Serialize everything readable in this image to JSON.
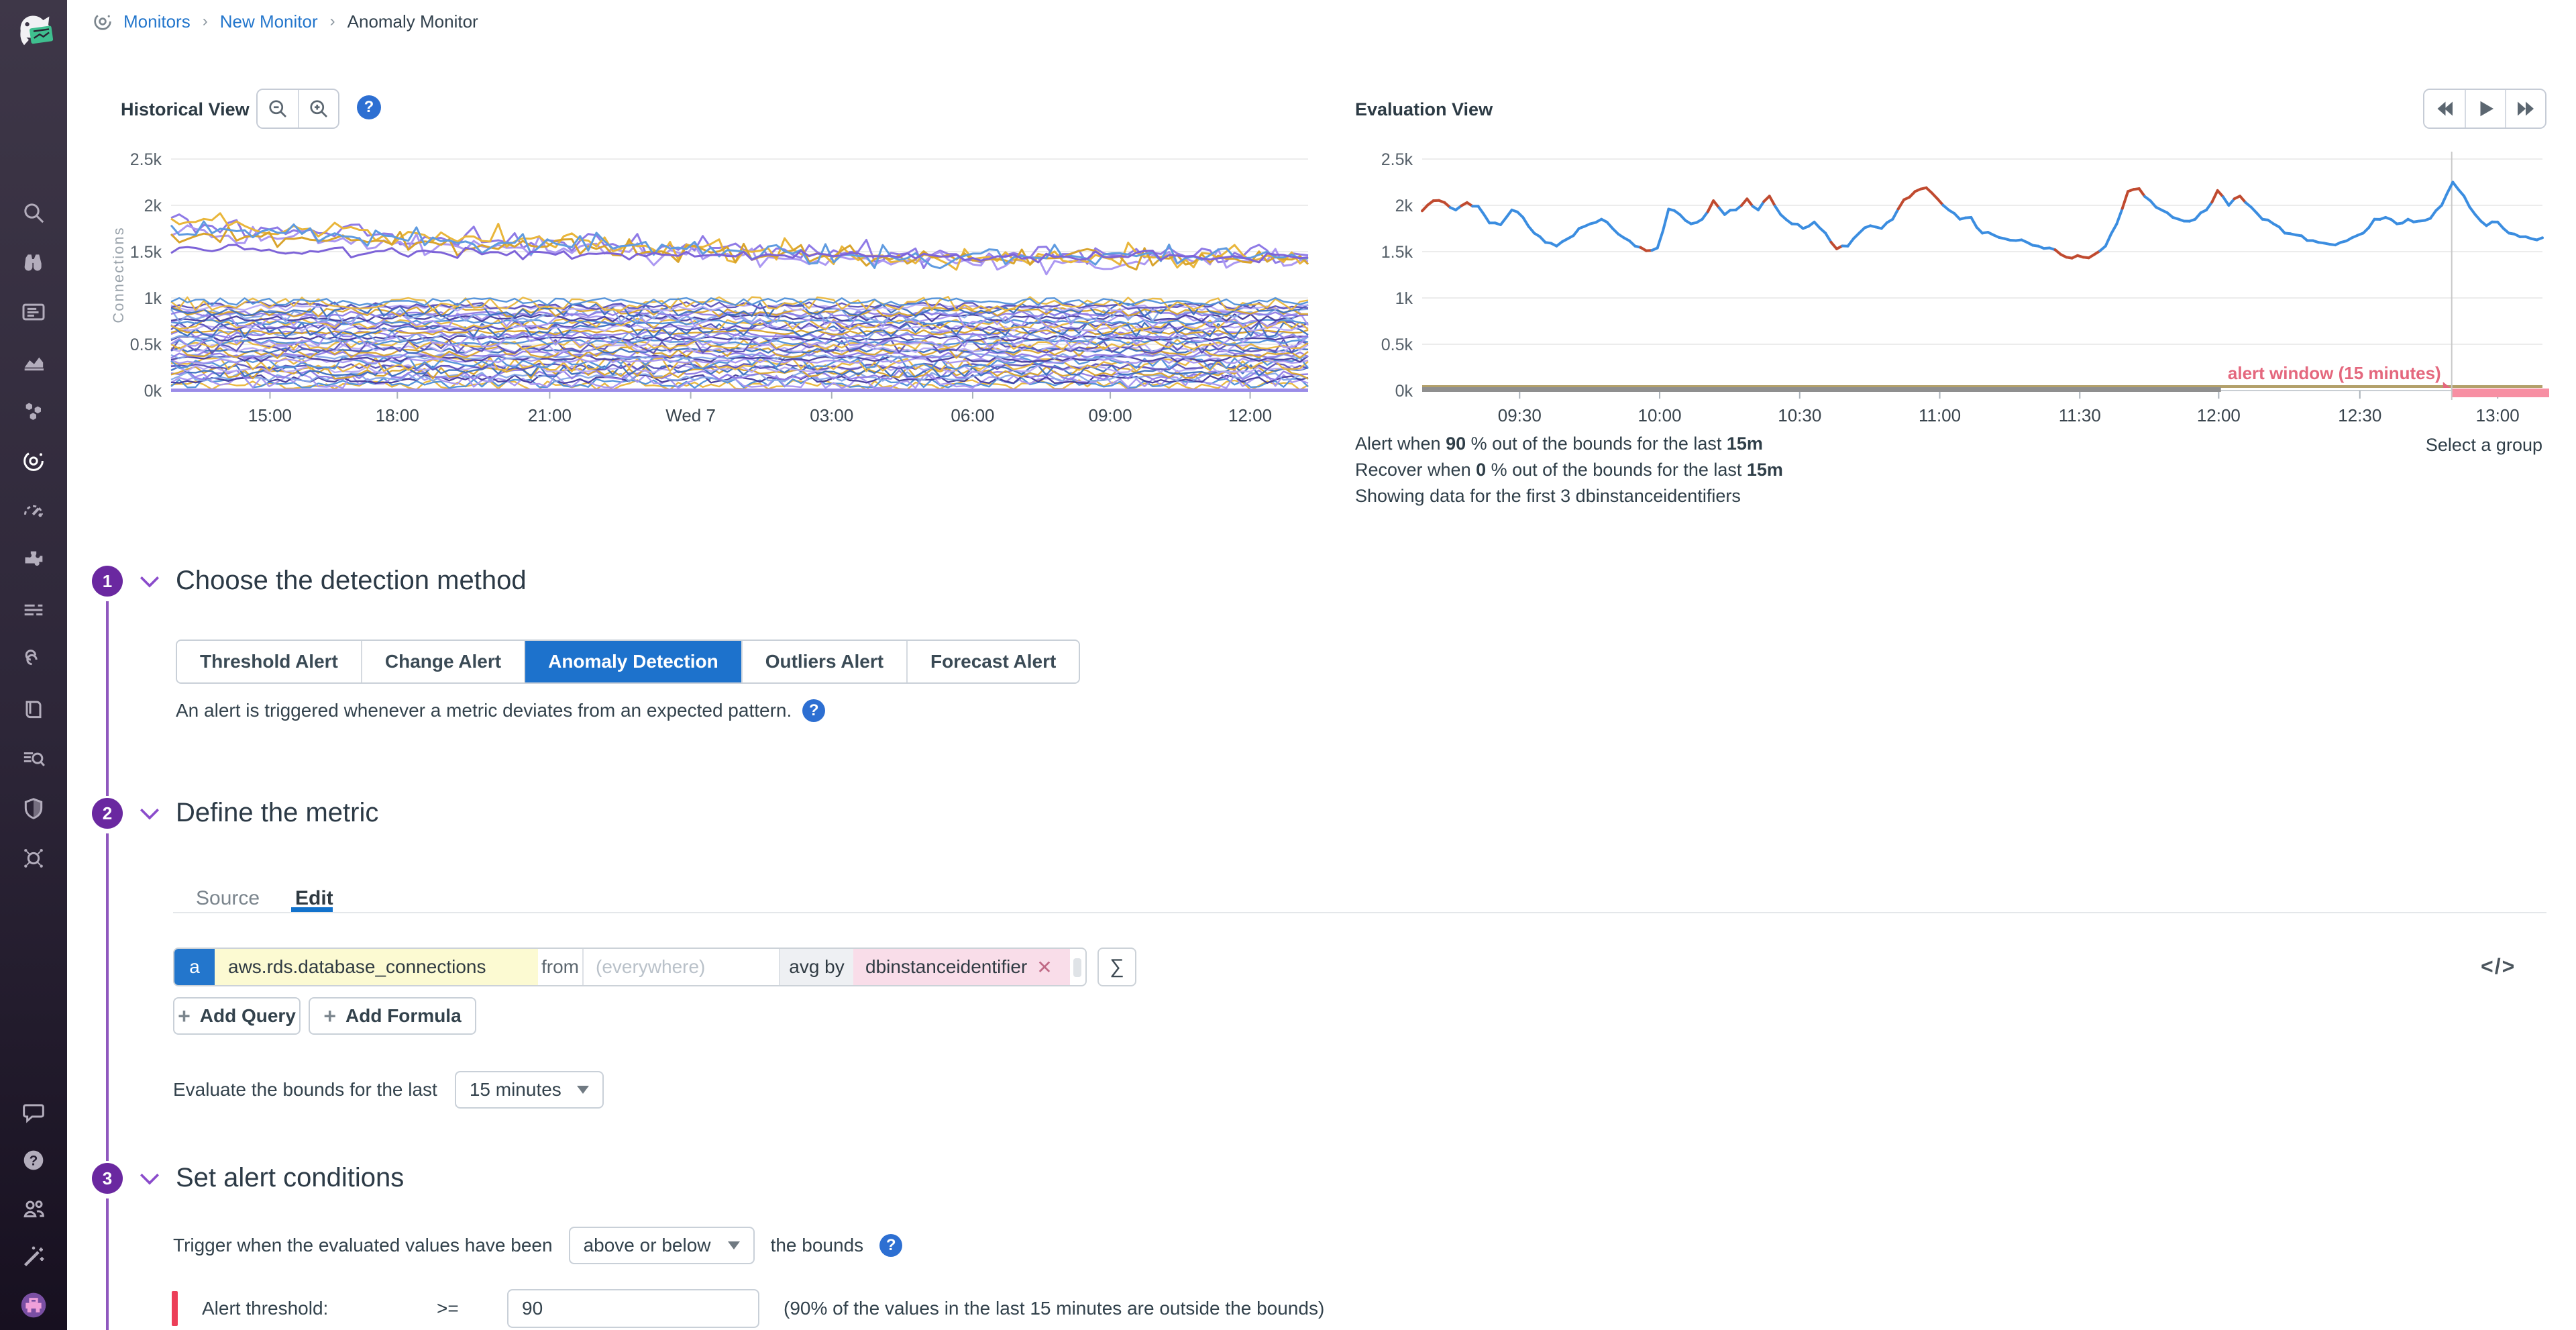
{
  "app": {
    "name": "Datadog"
  },
  "breadcrumb": {
    "items": [
      "Monitors",
      "New Monitor",
      "Anomaly Monitor"
    ]
  },
  "sidebar": {
    "nav_icons": [
      "search",
      "watchdog",
      "dashboards",
      "metrics",
      "infrastructure",
      "monitors",
      "apm",
      "integrations",
      "log-pipelines",
      "service-map",
      "notebooks",
      "log-explorer",
      "security",
      "synthetics"
    ],
    "active_icon": "monitors",
    "bottom_icons": [
      "chat",
      "help",
      "organization",
      "setup-wand",
      "user-avatar"
    ]
  },
  "historical": {
    "title": "Historical View"
  },
  "evaluation": {
    "title": "Evaluation View"
  },
  "summary": {
    "alert": {
      "prefix": "Alert when ",
      "value": "90",
      "mid": " % out of the bounds for the last ",
      "window": "15m"
    },
    "recover": {
      "prefix": "Recover when ",
      "value": "0",
      "mid": " % out of the bounds for the last ",
      "window": "15m"
    },
    "showing": "Showing data for the first 3 dbinstanceidentifiers",
    "select_group": "Select a group"
  },
  "sections": {
    "one": {
      "number": "1",
      "title": "Choose the detection method"
    },
    "two": {
      "number": "2",
      "title": "Define the metric"
    },
    "three": {
      "number": "3",
      "title": "Set alert conditions"
    }
  },
  "detection": {
    "methods": [
      "Threshold Alert",
      "Change Alert",
      "Anomaly Detection",
      "Outliers Alert",
      "Forecast Alert"
    ],
    "selected": "Anomaly Detection",
    "description": "An alert is triggered whenever a metric deviates from an expected pattern."
  },
  "metric": {
    "tabs": {
      "source": "Source",
      "edit": "Edit"
    },
    "active_tab": "Edit",
    "query": {
      "letter": "a",
      "metric": "aws.rds.database_connections",
      "from_label": "from",
      "scope_placeholder": "(everywhere)",
      "agg_label": "avg by",
      "group_tag": "dbinstanceidentifier",
      "sigma": "∑",
      "code_toggle": "</>"
    },
    "add_query": "Add Query",
    "add_formula": "Add Formula",
    "evaluate_label": "Evaluate the bounds for the last",
    "evaluation_window": "15 minutes"
  },
  "conditions": {
    "trigger_label": "Trigger when the evaluated values have been",
    "trigger_value": "above or below",
    "bounds_label": "the bounds",
    "threshold_label": "Alert threshold:",
    "operator": ">=",
    "threshold_value": "90",
    "threshold_hint": "(90% of the values in the last 15 minutes are outside the bounds)"
  },
  "chart_data": [
    {
      "type": "line",
      "title": "Historical View",
      "ylabel": "Connections",
      "ylim": [
        0,
        2500
      ],
      "yticks": [
        "0k",
        "0.5k",
        "1k",
        "1.5k",
        "2k",
        "2.5k"
      ],
      "xticks": [
        {
          "label": "15:00",
          "pct": 8.7
        },
        {
          "label": "18:00",
          "pct": 19.9
        },
        {
          "label": "21:00",
          "pct": 33.3
        },
        {
          "label": "Wed 7",
          "pct": 45.7
        },
        {
          "label": "03:00",
          "pct": 58.1
        },
        {
          "label": "06:00",
          "pct": 70.5
        },
        {
          "label": "09:00",
          "pct": 82.6
        },
        {
          "label": "12:00",
          "pct": 94.9
        }
      ],
      "values_note": "Approximately 50 per-dbinstanceidentifier series over 24h; top cluster drifts from ~1.8-2.1k down to ~1.4-1.5k, dense noisy band of remaining series between 0 and 1k",
      "seed": 11,
      "top_series": [
        {
          "color": "#8f7ae6",
          "base_start": 1780,
          "base_end": 1470,
          "amp": 170
        },
        {
          "color": "#ab97f2",
          "base_start": 1680,
          "base_end": 1400,
          "amp": 150
        },
        {
          "color": "#e9b63b",
          "base_start": 1820,
          "base_end": 1450,
          "amp": 160
        },
        {
          "color": "#d9a42c",
          "base_start": 1690,
          "base_end": 1430,
          "amp": 140
        },
        {
          "color": "#5f9be0",
          "base_start": 1760,
          "base_end": 1440,
          "amp": 150
        },
        {
          "color": "#7d63d8",
          "base_start": 1520,
          "base_end": 1450,
          "amp": 70
        }
      ],
      "band": {
        "count": 42,
        "base_min": 60,
        "base_max": 960,
        "amp_min": 25,
        "amp_max": 85,
        "colors": [
          "#e9b63b",
          "#4e8fd9",
          "#a694f0",
          "#433b9e",
          "#85a8e8",
          "#8f7ae6",
          "#d9a42c",
          "#3a6fc0",
          "#b7a9f5",
          "#5a50b8"
        ]
      },
      "baseline_color": "#9b8ce8"
    },
    {
      "type": "line",
      "title": "Evaluation View",
      "ylim": [
        0,
        2500
      ],
      "yticks": [
        "0k",
        "0.5k",
        "1k",
        "1.5k",
        "2k",
        "2.5k"
      ],
      "xticks": [
        {
          "label": "09:30",
          "pct": 8.7
        },
        {
          "label": "10:00",
          "pct": 21.2
        },
        {
          "label": "10:30",
          "pct": 33.7
        },
        {
          "label": "11:00",
          "pct": 46.2
        },
        {
          "label": "11:30",
          "pct": 58.7
        },
        {
          "label": "12:00",
          "pct": 71.1
        },
        {
          "label": "12:30",
          "pct": 83.7
        },
        {
          "label": "13:00",
          "pct": 96.0
        }
      ],
      "series_name": "aws.rds.database_connections (avg by dbinstanceidentifier)",
      "series_color": "#3b8de0",
      "anomaly_color": "#c04a2f",
      "points": [
        [
          0,
          1940,
          1
        ],
        [
          1,
          2050,
          1
        ],
        [
          2,
          2030,
          1
        ],
        [
          3,
          1950,
          0
        ],
        [
          4,
          2030,
          1
        ],
        [
          5,
          1990,
          0
        ],
        [
          6,
          1810,
          0
        ],
        [
          7,
          1790,
          0
        ],
        [
          8,
          1950,
          0
        ],
        [
          9,
          1870,
          0
        ],
        [
          10,
          1700,
          0
        ],
        [
          11,
          1600,
          0
        ],
        [
          12,
          1560,
          0
        ],
        [
          13,
          1640,
          0
        ],
        [
          14,
          1750,
          0
        ],
        [
          15,
          1800,
          0
        ],
        [
          16,
          1850,
          0
        ],
        [
          17,
          1750,
          0
        ],
        [
          18,
          1650,
          0
        ],
        [
          19,
          1560,
          0
        ],
        [
          20,
          1510,
          1
        ],
        [
          21,
          1540,
          0
        ],
        [
          22,
          1960,
          0
        ],
        [
          23,
          1900,
          0
        ],
        [
          24,
          1800,
          0
        ],
        [
          25,
          1850,
          0
        ],
        [
          26,
          2050,
          1
        ],
        [
          27,
          1900,
          0
        ],
        [
          28,
          1950,
          0
        ],
        [
          29,
          2070,
          1
        ],
        [
          30,
          1950,
          0
        ],
        [
          31,
          2100,
          1
        ],
        [
          32,
          1900,
          0
        ],
        [
          33,
          1800,
          0
        ],
        [
          34,
          1750,
          0
        ],
        [
          35,
          1820,
          0
        ],
        [
          36,
          1700,
          0
        ],
        [
          37,
          1530,
          1
        ],
        [
          38,
          1560,
          0
        ],
        [
          39,
          1700,
          0
        ],
        [
          40,
          1780,
          0
        ],
        [
          41,
          1750,
          0
        ],
        [
          42,
          1850,
          0
        ],
        [
          43,
          2060,
          1
        ],
        [
          44,
          2150,
          1
        ],
        [
          45,
          2190,
          1
        ],
        [
          46,
          2070,
          1
        ],
        [
          47,
          1950,
          0
        ],
        [
          48,
          1850,
          0
        ],
        [
          49,
          1870,
          0
        ],
        [
          50,
          1700,
          0
        ],
        [
          51,
          1680,
          0
        ],
        [
          52,
          1640,
          0
        ],
        [
          53,
          1620,
          0
        ],
        [
          54,
          1600,
          0
        ],
        [
          55,
          1560,
          0
        ],
        [
          56,
          1540,
          0
        ],
        [
          57,
          1470,
          1
        ],
        [
          58,
          1430,
          1
        ],
        [
          59,
          1440,
          1
        ],
        [
          60,
          1470,
          1
        ],
        [
          61,
          1560,
          0
        ],
        [
          62,
          1800,
          0
        ],
        [
          63,
          2150,
          1
        ],
        [
          64,
          2180,
          1
        ],
        [
          65,
          2050,
          0
        ],
        [
          66,
          1950,
          0
        ],
        [
          67,
          1870,
          0
        ],
        [
          68,
          1830,
          0
        ],
        [
          69,
          1850,
          0
        ],
        [
          70,
          1950,
          0
        ],
        [
          71,
          2160,
          1
        ],
        [
          72,
          2000,
          0
        ],
        [
          73,
          2100,
          1
        ],
        [
          74,
          1980,
          0
        ],
        [
          75,
          1850,
          0
        ],
        [
          76,
          1800,
          0
        ],
        [
          77,
          1700,
          0
        ],
        [
          78,
          1680,
          0
        ],
        [
          79,
          1620,
          0
        ],
        [
          80,
          1600,
          0
        ],
        [
          81,
          1580,
          0
        ],
        [
          82,
          1600,
          0
        ],
        [
          83,
          1650,
          0
        ],
        [
          84,
          1700,
          0
        ],
        [
          85,
          1850,
          0
        ],
        [
          86,
          1870,
          0
        ],
        [
          87,
          1800,
          0
        ],
        [
          88,
          1850,
          0
        ],
        [
          89,
          1830,
          0
        ],
        [
          90,
          1860,
          0
        ],
        [
          91,
          2000,
          0
        ],
        [
          92,
          2250,
          0
        ],
        [
          93,
          2100,
          0
        ],
        [
          94,
          1900,
          0
        ],
        [
          95,
          1780,
          0
        ],
        [
          96,
          1820,
          0
        ],
        [
          97,
          1700,
          0
        ],
        [
          98,
          1660,
          0
        ],
        [
          99,
          1640,
          0
        ],
        [
          100,
          1650,
          0
        ]
      ],
      "cursor_pct": 91.9,
      "alert_window": {
        "label": "alert window (15 minutes)",
        "from_pct": 91.9,
        "to_pct": 100,
        "bar_color": "#f78fa3",
        "label_color": "#e4687e"
      },
      "gray_band": {
        "from_pct": 0,
        "to_pct": 71.3,
        "color": "#8f8f8f"
      },
      "tan_line": {
        "from_pct": 0,
        "to_pct": 100,
        "color": "#b3a06a"
      }
    }
  ]
}
